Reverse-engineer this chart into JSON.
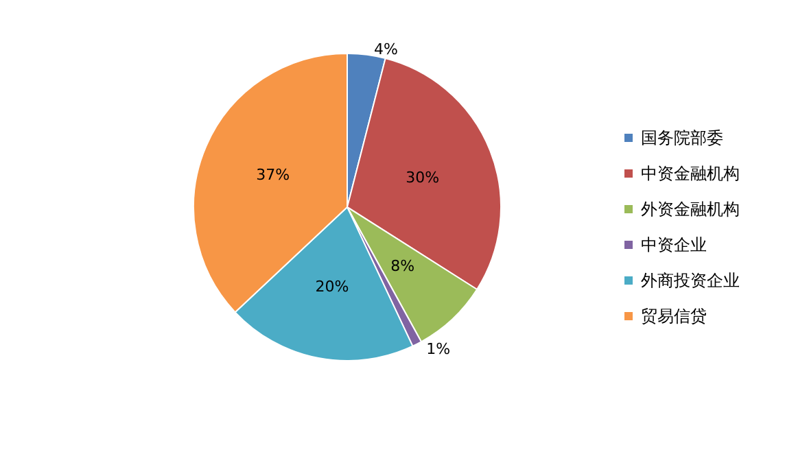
{
  "chart_data": {
    "type": "pie",
    "categories": [
      "国务院部委",
      "中资金融机构",
      "外资金融机构",
      "中资企业",
      "外商投资企业",
      "贸易信贷"
    ],
    "values": [
      4,
      30,
      8,
      1,
      20,
      37
    ],
    "colors": [
      "#4f81bd",
      "#c0504d",
      "#9bbb59",
      "#8064a2",
      "#4bacc6",
      "#f79646"
    ],
    "value_labels": [
      "4%",
      "30%",
      "8%",
      "1%",
      "20%",
      "37%"
    ],
    "legend": "right"
  }
}
